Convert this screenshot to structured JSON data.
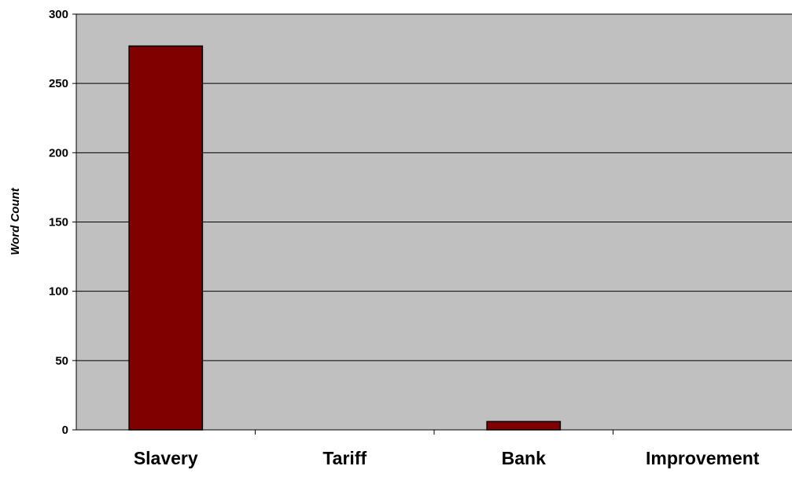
{
  "chart_data": {
    "type": "bar",
    "title": "",
    "xlabel": "",
    "ylabel": "Word Count",
    "categories": [
      "Slavery",
      "Tariff",
      "Bank",
      "Improvement"
    ],
    "values": [
      277,
      0,
      6,
      0
    ],
    "ylim": [
      0,
      300
    ],
    "yticks": [
      "0",
      "50",
      "100",
      "150",
      "200",
      "250",
      "300"
    ],
    "grid": true,
    "legend": "none",
    "colors": {
      "bar_fill": "#800000",
      "plot_background": "#c0c0c0",
      "gridline": "#000000"
    }
  }
}
